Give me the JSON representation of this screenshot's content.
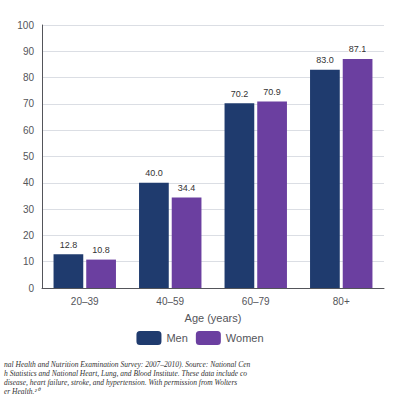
{
  "chart_data": {
    "type": "bar",
    "categories": [
      "20–39",
      "40–59",
      "60–79",
      "80+"
    ],
    "series": [
      {
        "name": "Men",
        "color": "#1F3B6E",
        "values": [
          12.8,
          40.0,
          70.2,
          83.0
        ],
        "value_labels": [
          "12.8",
          "40.0",
          "70.2",
          "83.0"
        ]
      },
      {
        "name": "Women",
        "color": "#6B3FA0",
        "values": [
          10.8,
          34.4,
          70.9,
          87.1
        ],
        "value_labels": [
          "10.8",
          "34.4",
          "70.9",
          "87.1"
        ]
      }
    ],
    "xlabel": "Age (years)",
    "ylim": [
      0,
      100
    ],
    "yticks": [
      0,
      10,
      20,
      30,
      40,
      50,
      60,
      70,
      80,
      90,
      100
    ],
    "grid": true,
    "legend": "bottom",
    "data_labels": true,
    "annotations": [
      "nal Health and Nutrition Examination Survey: 2007–2010). Source: National Cen\nh Statistics and National Heart, Lung, and Blood Institute. These data include co\ndisease, heart failure, stroke, and hypertension. With permission from Wolters\ner Health.²⁰"
    ]
  }
}
